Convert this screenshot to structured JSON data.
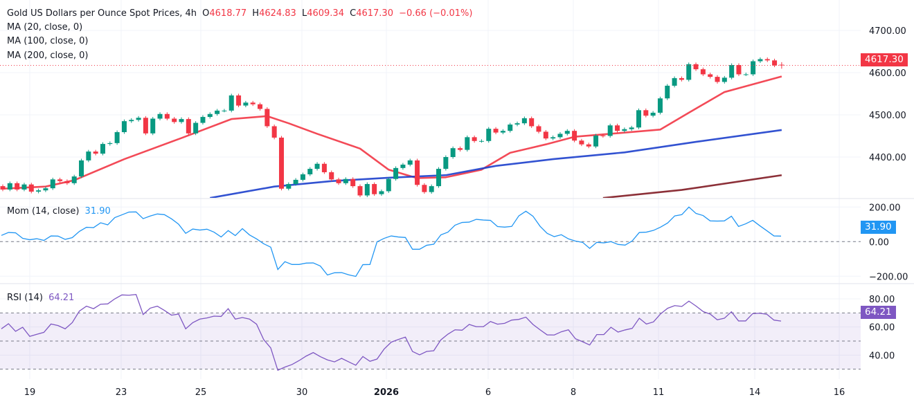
{
  "header": {
    "symbol": "Gold US Dollars per Ounce Spot Prices, 4h",
    "o_label": "O",
    "o": "4618.77",
    "h_label": "H",
    "h": "4624.83",
    "l_label": "L",
    "l": "4609.34",
    "c_label": "C",
    "c": "4617.30",
    "change": "−0.66 (−0.01%)",
    "ma20": "MA (20, close, 0)",
    "ma100": "MA (100, close, 0)",
    "ma200": "MA (200, close, 0)"
  },
  "mom": {
    "label": "Mom (14, close)",
    "value": "31.90"
  },
  "rsi": {
    "label": "RSI (14)",
    "value": "64.21"
  },
  "price_tag": "4617.30",
  "colors": {
    "up": "#089981",
    "down": "#f23645",
    "ma20": "#f23645",
    "ma100": "#1c3fcc",
    "ma200": "#801922",
    "mom": "#2196f3",
    "rsi": "#7e57c2"
  },
  "chart_data": [
    {
      "type": "candlestick",
      "title": "Gold US Dollars per Ounce Spot Prices, 4h",
      "ylim": [
        4300,
        4740
      ],
      "y_ticks": [
        "4700.00",
        "4600.00",
        "4500.00",
        "4400.00"
      ],
      "x_ticks": [
        "19",
        "23",
        "25",
        "30",
        "2026",
        "6",
        "8",
        "11",
        "14",
        "16"
      ],
      "last_candle": {
        "open": 4618.77,
        "high": 4624.83,
        "low": 4609.34,
        "close": 4617.3
      },
      "close": [
        4323,
        4338,
        4323,
        4335,
        4318,
        4321,
        4326,
        4347,
        4343,
        4338,
        4354,
        4392,
        4413,
        4408,
        4431,
        4433,
        4459,
        4485,
        4488,
        4493,
        4456,
        4491,
        4502,
        4491,
        4483,
        4490,
        4456,
        4481,
        4495,
        4502,
        4510,
        4510,
        4546,
        4522,
        4529,
        4525,
        4514,
        4473,
        4446,
        4325,
        4336,
        4346,
        4359,
        4372,
        4384,
        4364,
        4347,
        4338,
        4348,
        4331,
        4309,
        4336,
        4312,
        4319,
        4348,
        4374,
        4382,
        4392,
        4334,
        4317,
        4331,
        4372,
        4400,
        4421,
        4417,
        4447,
        4438,
        4438,
        4467,
        4458,
        4462,
        4477,
        4480,
        4492,
        4473,
        4460,
        4444,
        4447,
        4455,
        4462,
        4439,
        4430,
        4425,
        4451,
        4450,
        4475,
        4462,
        4466,
        4470,
        4511,
        4498,
        4505,
        4539,
        4569,
        4587,
        4583,
        4620,
        4608,
        4596,
        4590,
        4578,
        4588,
        4618,
        4596,
        4596,
        4627,
        4632,
        4629,
        4617,
        4617.3
      ],
      "series": [
        {
          "name": "MA (20, close, 0)",
          "points": [
            [
              0,
              4325
            ],
            [
              6,
              4330
            ],
            [
              10,
              4345
            ],
            [
              17,
              4395
            ],
            [
              25,
              4445
            ],
            [
              32,
              4490
            ],
            [
              37,
              4497
            ],
            [
              40,
              4480
            ],
            [
              44,
              4455
            ],
            [
              50,
              4420
            ],
            [
              54,
              4370
            ],
            [
              58,
              4350
            ],
            [
              62,
              4352
            ],
            [
              67,
              4370
            ],
            [
              71,
              4410
            ],
            [
              76,
              4430
            ],
            [
              80,
              4448
            ],
            [
              85,
              4455
            ],
            [
              92,
              4465
            ],
            [
              96,
              4505
            ],
            [
              101,
              4554
            ],
            [
              109,
              4591
            ]
          ]
        },
        {
          "name": "MA (100, close, 0)",
          "points": [
            [
              29,
              4303
            ],
            [
              38,
              4330
            ],
            [
              46,
              4343
            ],
            [
              54,
              4351
            ],
            [
              62,
              4357
            ],
            [
              69,
              4379
            ],
            [
              77,
              4395
            ],
            [
              87,
              4411
            ],
            [
              97,
              4436
            ],
            [
              109,
              4464
            ]
          ]
        },
        {
          "name": "MA (200, close, 0)",
          "points": [
            [
              84,
              4303
            ],
            [
              95,
              4322
            ],
            [
              109,
              4357
            ]
          ]
        }
      ]
    },
    {
      "type": "line",
      "title": "Mom (14, close)",
      "ylim": [
        -250,
        250
      ],
      "y_ticks": [
        "200.00",
        "0.00",
        "−200.00"
      ],
      "values": [
        36,
        53,
        51,
        19,
        11,
        17,
        7,
        33,
        32,
        13,
        23,
        59,
        83,
        81,
        109,
        97,
        139,
        155,
        171,
        172,
        133,
        148,
        160,
        156,
        132,
        101,
        48,
        73,
        67,
        72,
        55,
        27,
        64,
        35,
        75,
        39,
        16,
        -12,
        -32,
        -161,
        -116,
        -132,
        -132,
        -124,
        -123,
        -141,
        -193,
        -180,
        -179,
        -192,
        -201,
        -133,
        -132,
        -1,
        19,
        33,
        27,
        24,
        -44,
        -44,
        -21,
        -15,
        39,
        55,
        95,
        111,
        113,
        129,
        125,
        123,
        87,
        84,
        88,
        149,
        176,
        147,
        89,
        48,
        29,
        40,
        16,
        3,
        -4,
        -39,
        -4,
        -7,
        0,
        -16,
        -20,
        4,
        53,
        55,
        65,
        84,
        108,
        149,
        156,
        200,
        163,
        151,
        120,
        119,
        120,
        147,
        88,
        103,
        123,
        92,
        63,
        33,
        31.9
      ]
    },
    {
      "type": "line",
      "title": "RSI (14)",
      "ylim": [
        25,
        87
      ],
      "y_ticks": [
        "80.00",
        "60.00",
        "40.00"
      ],
      "bands": [
        70,
        50,
        30
      ],
      "values": [
        58.7,
        62.3,
        56.9,
        59.8,
        53.3,
        54.8,
        56.2,
        62.1,
        61.0,
        58.7,
        63.1,
        71.3,
        74.8,
        73.0,
        76.2,
        76.4,
        80.0,
        82.8,
        82.6,
        83.1,
        68.9,
        73.4,
        74.8,
        71.8,
        68.4,
        69.2,
        58.7,
        63.1,
        65.6,
        66.4,
        67.7,
        67.5,
        73.0,
        65.6,
        66.7,
        65.6,
        62.0,
        51.1,
        45.1,
        29.2,
        31.5,
        33.3,
        36.1,
        39.3,
        41.8,
        38.9,
        36.6,
        35.2,
        37.7,
        35.2,
        32.8,
        39.0,
        35.6,
        37.2,
        44.3,
        49.2,
        51.1,
        52.8,
        42.6,
        40.2,
        42.6,
        43.1,
        50.8,
        54.9,
        58.0,
        57.7,
        61.8,
        60.2,
        60.2,
        63.9,
        62.0,
        62.6,
        64.9,
        65.4,
        67.0,
        61.8,
        58.0,
        54.4,
        54.3,
        56.6,
        58.0,
        51.6,
        49.5,
        47.2,
        54.6,
        54.6,
        59.8,
        56.4,
        57.9,
        59.0,
        66.2,
        62.1,
        63.6,
        69.3,
        73.3,
        75.2,
        74.6,
        78.4,
        74.9,
        71.0,
        69.2,
        65.1,
        66.2,
        70.8,
        64.3,
        64.3,
        69.5,
        69.8,
        69.0,
        64.9,
        64.21
      ]
    }
  ]
}
